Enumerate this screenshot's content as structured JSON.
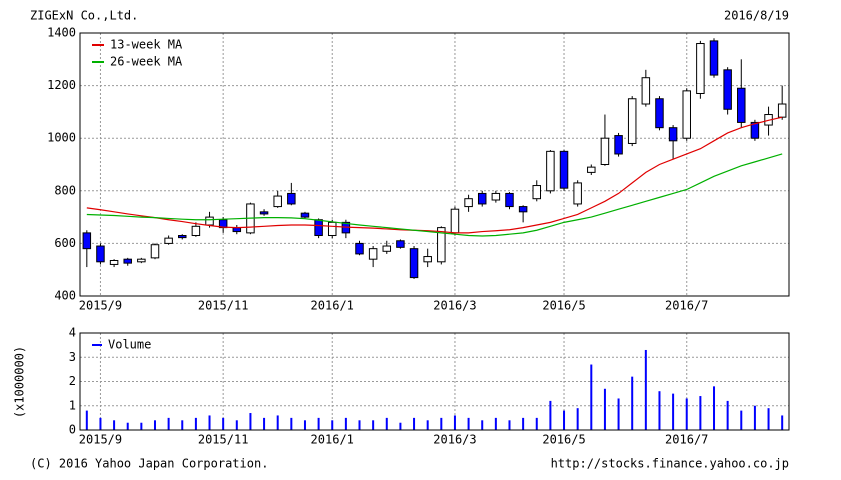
{
  "chart_data": [
    {
      "type": "candlestick",
      "title": "ZIGExN Co.,Ltd.",
      "subtitle": "2016/8/19",
      "categories": [
        null,
        "2015/9",
        null,
        null,
        null,
        null,
        null,
        null,
        null,
        null,
        "2015/11",
        null,
        null,
        null,
        null,
        null,
        null,
        null,
        "2016/1",
        null,
        null,
        null,
        null,
        null,
        null,
        null,
        null,
        "2016/3",
        null,
        null,
        null,
        null,
        null,
        null,
        null,
        "2016/5",
        null,
        null,
        null,
        null,
        null,
        null,
        null,
        null,
        "2016/7",
        null,
        null,
        null,
        null,
        null,
        null,
        null
      ],
      "open": [
        640,
        590,
        520,
        540,
        530,
        545,
        600,
        630,
        630,
        670,
        690,
        660,
        640,
        720,
        740,
        790,
        715,
        690,
        630,
        680,
        600,
        540,
        570,
        610,
        580,
        530,
        530,
        640,
        740,
        790,
        765,
        790,
        740,
        770,
        800,
        950,
        750,
        870,
        900,
        1010,
        980,
        1130,
        1150,
        1040,
        1000,
        1170,
        1370,
        1260,
        1190,
        1060,
        1050,
        1080
      ],
      "high": [
        650,
        600,
        540,
        545,
        545,
        600,
        630,
        635,
        680,
        720,
        700,
        670,
        755,
        730,
        800,
        830,
        720,
        695,
        690,
        690,
        610,
        590,
        610,
        615,
        590,
        580,
        665,
        740,
        785,
        800,
        800,
        795,
        745,
        840,
        955,
        955,
        840,
        900,
        1090,
        1020,
        1160,
        1260,
        1160,
        1050,
        1190,
        1370,
        1380,
        1270,
        1300,
        1070,
        1120,
        1200
      ],
      "low": [
        510,
        520,
        510,
        515,
        525,
        540,
        595,
        615,
        625,
        660,
        640,
        635,
        635,
        705,
        735,
        745,
        695,
        620,
        620,
        620,
        555,
        510,
        560,
        580,
        465,
        510,
        520,
        630,
        720,
        740,
        755,
        730,
        680,
        760,
        790,
        800,
        740,
        860,
        895,
        930,
        970,
        1120,
        1030,
        920,
        990,
        1150,
        1230,
        1090,
        1040,
        990,
        1010,
        1070
      ],
      "close": [
        580,
        530,
        535,
        525,
        540,
        595,
        620,
        622,
        665,
        700,
        660,
        645,
        750,
        712,
        780,
        750,
        700,
        630,
        680,
        640,
        560,
        580,
        590,
        585,
        470,
        550,
        660,
        730,
        770,
        750,
        790,
        740,
        720,
        820,
        950,
        810,
        830,
        890,
        1000,
        940,
        1150,
        1230,
        1040,
        990,
        1180,
        1360,
        1240,
        1110,
        1060,
        1000,
        1090,
        1130
      ],
      "up_color": "#ffffff",
      "down_color": "#0000ff",
      "series": [
        {
          "name": "13-week MA",
          "color": "#e00000",
          "values": [
            735,
            728,
            720,
            712,
            705,
            698,
            690,
            683,
            675,
            668,
            662,
            660,
            662,
            665,
            668,
            670,
            670,
            668,
            665,
            662,
            660,
            658,
            655,
            652,
            650,
            648,
            645,
            640,
            640,
            645,
            648,
            652,
            660,
            670,
            680,
            695,
            710,
            735,
            760,
            790,
            830,
            870,
            900,
            920,
            940,
            960,
            990,
            1020,
            1040,
            1055,
            1068,
            1080
          ]
        },
        {
          "name": "26-week MA",
          "color": "#00b000",
          "values": [
            710,
            708,
            706,
            703,
            700,
            698,
            695,
            692,
            690,
            690,
            692,
            694,
            696,
            698,
            698,
            697,
            694,
            688,
            682,
            676,
            670,
            665,
            660,
            655,
            650,
            645,
            640,
            635,
            630,
            628,
            630,
            635,
            640,
            650,
            665,
            680,
            690,
            700,
            715,
            730,
            745,
            760,
            775,
            790,
            805,
            830,
            855,
            875,
            895,
            910,
            925,
            940
          ]
        }
      ],
      "ylim": [
        400,
        1400
      ],
      "yticks": [
        400,
        600,
        800,
        1000,
        1200,
        1400
      ],
      "grid": true
    },
    {
      "type": "bar",
      "ylabel": "(x1000000)",
      "categories": [
        null,
        "2015/9",
        null,
        null,
        null,
        null,
        null,
        null,
        null,
        null,
        "2015/11",
        null,
        null,
        null,
        null,
        null,
        null,
        null,
        "2016/1",
        null,
        null,
        null,
        null,
        null,
        null,
        null,
        null,
        "2016/3",
        null,
        null,
        null,
        null,
        null,
        null,
        null,
        "2016/5",
        null,
        null,
        null,
        null,
        null,
        null,
        null,
        null,
        "2016/7",
        null,
        null,
        null,
        null,
        null,
        null,
        null
      ],
      "series": [
        {
          "name": "Volume",
          "color": "#0000ff",
          "values": [
            0.8,
            0.5,
            0.4,
            0.3,
            0.3,
            0.4,
            0.5,
            0.4,
            0.5,
            0.6,
            0.5,
            0.4,
            0.7,
            0.5,
            0.6,
            0.5,
            0.4,
            0.5,
            0.4,
            0.5,
            0.4,
            0.4,
            0.5,
            0.3,
            0.5,
            0.4,
            0.5,
            0.6,
            0.5,
            0.4,
            0.5,
            0.4,
            0.5,
            0.5,
            1.2,
            0.8,
            0.9,
            2.7,
            1.7,
            1.3,
            2.2,
            3.3,
            1.6,
            1.5,
            1.3,
            1.4,
            1.8,
            1.2,
            0.8,
            1.0,
            0.9,
            0.6
          ]
        }
      ],
      "ylim": [
        0,
        4
      ],
      "yticks": [
        0,
        1,
        2,
        3,
        4
      ],
      "grid": true
    }
  ],
  "footer": {
    "copyright": "(C) 2016 Yahoo Japan Corporation.",
    "source": "http://stocks.finance.yahoo.co.jp"
  }
}
